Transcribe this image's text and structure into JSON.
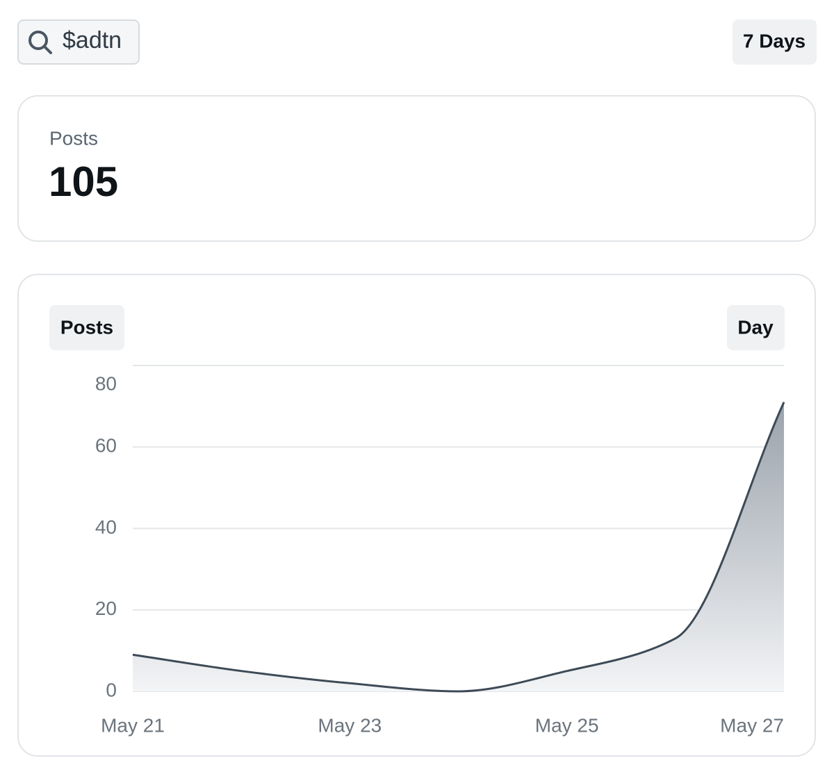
{
  "search": {
    "query": "$adtn"
  },
  "range_button": "7 Days",
  "summary": {
    "label": "Posts",
    "value": "105"
  },
  "chart_data": {
    "type": "area",
    "metric_button": "Posts",
    "interval_button": "Day",
    "categories": [
      "May 21",
      null,
      "May 23",
      null,
      "May 25",
      null,
      "May 27"
    ],
    "series": [
      {
        "name": "Posts",
        "color": "#3d4a56",
        "values": [
          9,
          5,
          2,
          0,
          5,
          13,
          71
        ]
      }
    ],
    "ylim": [
      0,
      80
    ],
    "yticks": [
      0,
      20,
      40,
      60,
      80
    ],
    "grid": true
  }
}
